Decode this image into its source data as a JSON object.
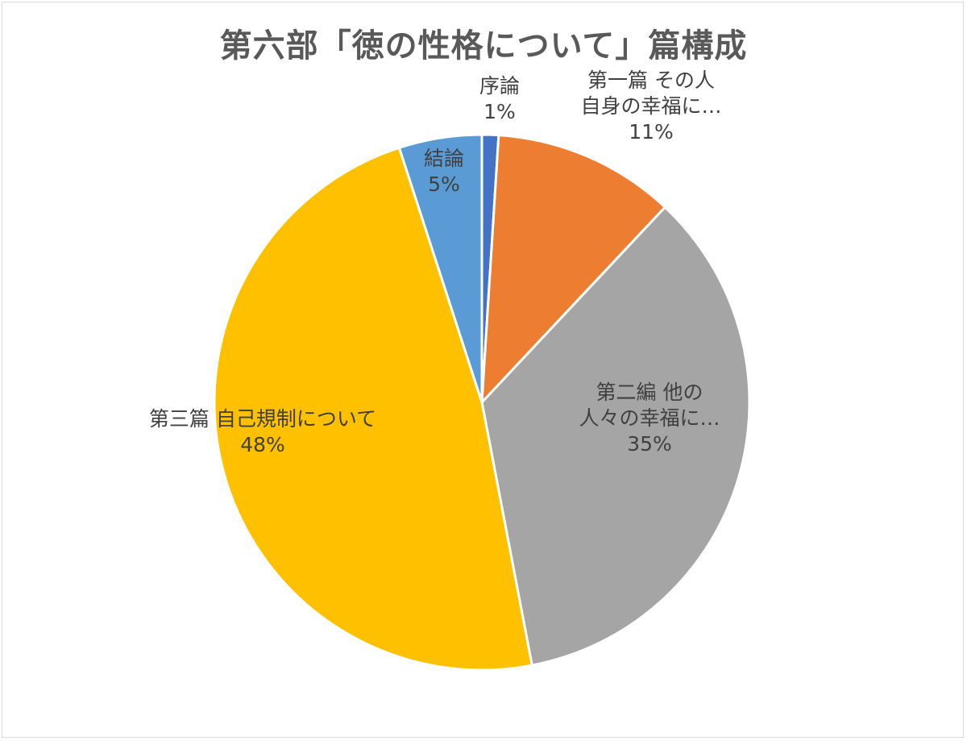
{
  "chart_data": {
    "type": "pie",
    "title": "第六部「徳の性格について」篇構成",
    "start_angle_deg": 0,
    "direction": "clockwise",
    "slices": [
      {
        "label_lines": [
          "序論"
        ],
        "value_label": "1%",
        "value": 1,
        "color": "#4472C4"
      },
      {
        "label_lines": [
          "第一篇 その人",
          "自身の幸福に…"
        ],
        "value_label": "11%",
        "value": 11,
        "color": "#ED7D31"
      },
      {
        "label_lines": [
          "第二編 他の",
          "人々の幸福に…"
        ],
        "value_label": "35%",
        "value": 35,
        "color": "#A5A5A5"
      },
      {
        "label_lines": [
          "第三篇 自己規制について"
        ],
        "value_label": "48%",
        "value": 48,
        "color": "#FFC000"
      },
      {
        "label_lines": [
          "結論"
        ],
        "value_label": "5%",
        "value": 5,
        "color": "#5B9BD5"
      }
    ]
  }
}
